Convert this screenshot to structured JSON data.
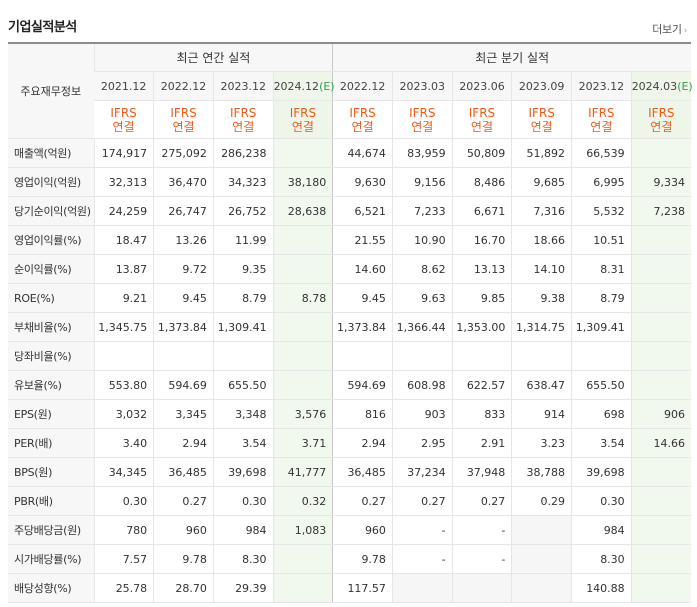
{
  "header": {
    "title": "기업실적분석",
    "more_label": "더보기",
    "more_arrow": "›"
  },
  "table": {
    "corner_label": "주요재무정보",
    "groups": {
      "annual": "최근 연간 실적",
      "quarterly": "최근 분기 실적"
    },
    "periods": [
      {
        "label": "2021.12",
        "estimate": ""
      },
      {
        "label": "2022.12",
        "estimate": ""
      },
      {
        "label": "2023.12",
        "estimate": ""
      },
      {
        "label": "2024.12",
        "estimate": "(E)"
      },
      {
        "label": "2022.12",
        "estimate": ""
      },
      {
        "label": "2023.03",
        "estimate": ""
      },
      {
        "label": "2023.06",
        "estimate": ""
      },
      {
        "label": "2023.09",
        "estimate": ""
      },
      {
        "label": "2023.12",
        "estimate": ""
      },
      {
        "label": "2024.03",
        "estimate": "(E)"
      }
    ],
    "basis": {
      "line1": "IFRS",
      "line2": "연결"
    },
    "rows": [
      {
        "label": "매출액(억원)",
        "values": [
          "174,917",
          "275,092",
          "286,238",
          "",
          "44,674",
          "83,959",
          "50,809",
          "51,892",
          "66,539",
          ""
        ]
      },
      {
        "label": "영업이익(억원)",
        "values": [
          "32,313",
          "36,470",
          "34,323",
          "38,180",
          "9,630",
          "9,156",
          "8,486",
          "9,685",
          "6,995",
          "9,334"
        ]
      },
      {
        "label": "당기순이익(억원)",
        "values": [
          "24,259",
          "26,747",
          "26,752",
          "28,638",
          "6,521",
          "7,233",
          "6,671",
          "7,316",
          "5,532",
          "7,238"
        ]
      },
      {
        "label": "영업이익률(%)",
        "values": [
          "18.47",
          "13.26",
          "11.99",
          "",
          "21.55",
          "10.90",
          "16.70",
          "18.66",
          "10.51",
          ""
        ]
      },
      {
        "label": "순이익률(%)",
        "values": [
          "13.87",
          "9.72",
          "9.35",
          "",
          "14.60",
          "8.62",
          "13.13",
          "14.10",
          "8.31",
          ""
        ]
      },
      {
        "label": "ROE(%)",
        "values": [
          "9.21",
          "9.45",
          "8.79",
          "8.78",
          "9.45",
          "9.63",
          "9.85",
          "9.38",
          "8.79",
          ""
        ]
      },
      {
        "label": "부채비율(%)",
        "values": [
          "1,345.75",
          "1,373.84",
          "1,309.41",
          "",
          "1,373.84",
          "1,366.44",
          "1,353.00",
          "1,314.75",
          "1,309.41",
          ""
        ]
      },
      {
        "label": "당좌비율(%)",
        "values": [
          "",
          "",
          "",
          "",
          "",
          "",
          "",
          "",
          "",
          ""
        ]
      },
      {
        "label": "유보율(%)",
        "values": [
          "553.80",
          "594.69",
          "655.50",
          "",
          "594.69",
          "608.98",
          "622.57",
          "638.47",
          "655.50",
          ""
        ]
      },
      {
        "label": "EPS(원)",
        "values": [
          "3,032",
          "3,345",
          "3,348",
          "3,576",
          "816",
          "903",
          "833",
          "914",
          "698",
          "906"
        ]
      },
      {
        "label": "PER(배)",
        "values": [
          "3.40",
          "2.94",
          "3.54",
          "3.71",
          "2.94",
          "2.95",
          "2.91",
          "3.23",
          "3.54",
          "14.66"
        ]
      },
      {
        "label": "BPS(원)",
        "values": [
          "34,345",
          "36,485",
          "39,698",
          "41,777",
          "36,485",
          "37,234",
          "37,948",
          "38,788",
          "39,698",
          ""
        ]
      },
      {
        "label": "PBR(배)",
        "values": [
          "0.30",
          "0.27",
          "0.30",
          "0.32",
          "0.27",
          "0.27",
          "0.27",
          "0.29",
          "0.30",
          ""
        ]
      },
      {
        "label": "주당배당금(원)",
        "values": [
          "780",
          "960",
          "984",
          "1,083",
          "960",
          "-",
          "-",
          "",
          "984",
          ""
        ]
      },
      {
        "label": "시가배당률(%)",
        "values": [
          "7.57",
          "9.78",
          "8.30",
          "",
          "9.78",
          "-",
          "-",
          "",
          "8.30",
          ""
        ]
      },
      {
        "label": "배당성향(%)",
        "values": [
          "25.78",
          "28.70",
          "29.39",
          "",
          "117.57",
          "",
          "",
          "",
          "140.88",
          ""
        ]
      }
    ]
  }
}
